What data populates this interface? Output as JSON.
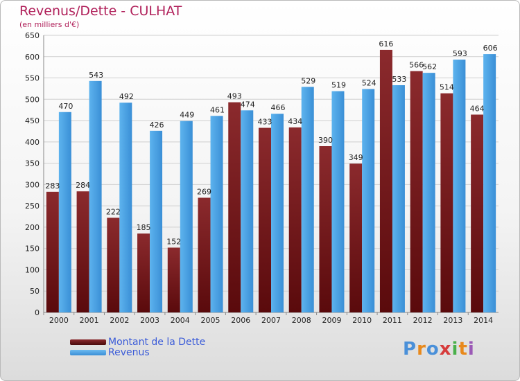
{
  "header": {
    "title": "Revenus/Dette - CULHAT",
    "subtitle": "(en milliers d'€)"
  },
  "legend": {
    "dette_label": "Montant de la Dette",
    "revenus_label": "Revenus"
  },
  "logo": {
    "letters": [
      "P",
      "r",
      "o",
      "x",
      "i",
      "t",
      "i"
    ],
    "colors": [
      "#4a90d9",
      "#e8891c",
      "#4a90d9",
      "#d63b3b",
      "#49b04a",
      "#e8891c",
      "#9b59b6"
    ]
  },
  "chart_data": {
    "type": "bar",
    "title": "Revenus/Dette - CULHAT",
    "subtitle": "(en milliers d'€)",
    "categories": [
      "2000",
      "2001",
      "2002",
      "2003",
      "2004",
      "2005",
      "2006",
      "2007",
      "2008",
      "2009",
      "2010",
      "2011",
      "2012",
      "2013",
      "2014"
    ],
    "series": [
      {
        "name": "Montant de la Dette",
        "color": "#7a1f22",
        "values": [
          283,
          284,
          222,
          185,
          152,
          269,
          493,
          433,
          434,
          390,
          349,
          616,
          566,
          514,
          464
        ]
      },
      {
        "name": "Revenus",
        "color": "#4aa3e6",
        "values": [
          470,
          543,
          492,
          426,
          449,
          461,
          474,
          466,
          529,
          519,
          524,
          533,
          562,
          593,
          606
        ]
      }
    ],
    "ylim": [
      0,
      650
    ],
    "yticks": [
      0,
      50,
      100,
      150,
      200,
      250,
      300,
      350,
      400,
      450,
      500,
      550,
      600,
      650
    ],
    "grid": true,
    "legend_position": "bottom-left"
  }
}
